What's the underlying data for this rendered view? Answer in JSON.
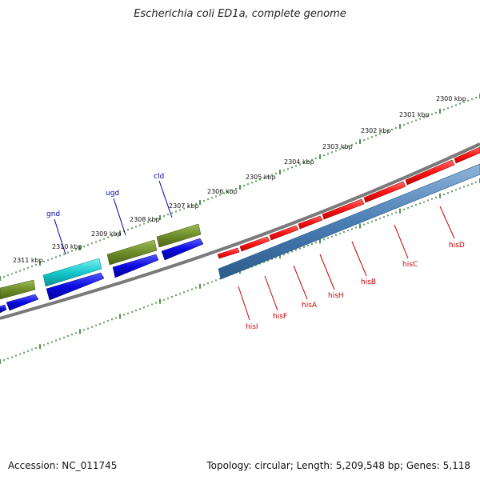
{
  "title": "Escherichia coli ED1a, complete genome",
  "footer": {
    "accession": "Accession: NC_011745",
    "summary": "Topology: circular; Length: 5,209,548 bp; Genes: 5,118"
  },
  "colors": {
    "genome_line": "#7a7a7a",
    "tick": "#1f7a1f",
    "forward_gene": "#ff1f1f",
    "reverse_gene": "#4a7fb5",
    "cds_blue": "#1010e0",
    "gene_olive": "#6e8c2a",
    "gene_cyan": "#16c8cc",
    "label_red": "#cc0000",
    "label_blue": "#0000aa"
  },
  "scale_labels": [
    "2300 kbp",
    "2301 kbp",
    "2302 kbp",
    "2303 kbp",
    "2304 kbp",
    "2305 kbp",
    "2306 kbp",
    "2307 kbp",
    "2308 kbp",
    "2309 kbp",
    "2310 kbp",
    "2311 kbp"
  ],
  "red_gene_labels": [
    "hisI",
    "hisF",
    "hisA",
    "hisH",
    "hisB",
    "hisC",
    "hisD"
  ],
  "blue_gene_labels": [
    "gnd",
    "ugd",
    "cld"
  ]
}
